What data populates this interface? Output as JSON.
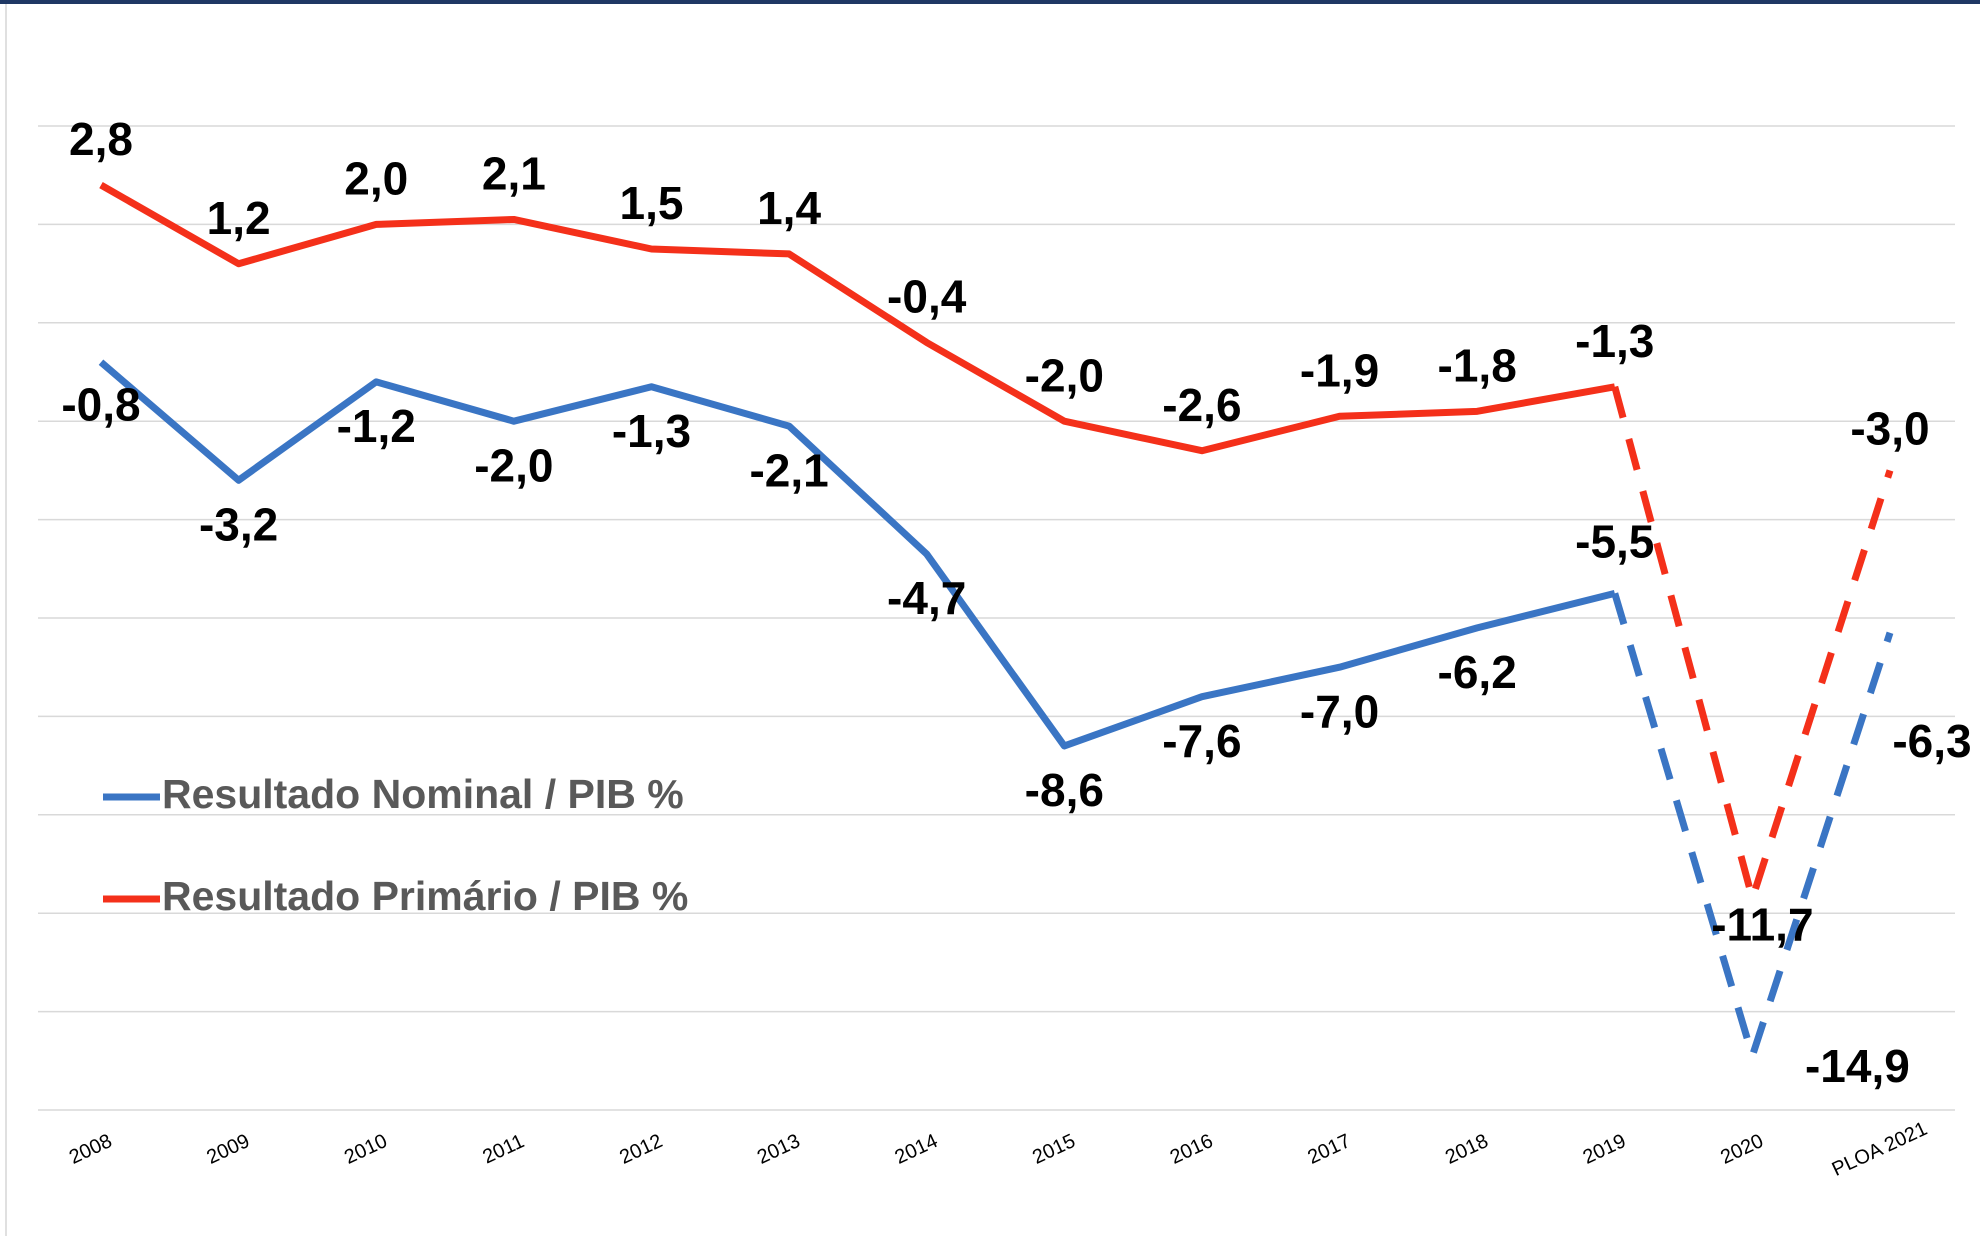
{
  "chart_data": {
    "type": "line",
    "categories": [
      "2008",
      "2009",
      "2010",
      "2011",
      "2012",
      "2013",
      "2014",
      "2015",
      "2016",
      "2017",
      "2018",
      "2019",
      "2020",
      "PLOA 2021"
    ],
    "series": [
      {
        "name": "Resultado Nominal / PIB %",
        "color": "#3a75c4",
        "values": [
          -0.8,
          -3.2,
          -1.2,
          -2.0,
          -1.3,
          -2.1,
          -4.7,
          -8.6,
          -7.6,
          -7.0,
          -6.2,
          -5.5,
          -14.9,
          -6.3
        ],
        "value_labels": [
          "-0,8",
          "-3,2",
          "-1,2",
          "-2,0",
          "-1,3",
          "-2,1",
          "-4,7",
          "-8,6",
          "-7,6",
          "-7,0",
          "-6,2",
          "-5,5",
          "-14,9",
          "-6,3"
        ]
      },
      {
        "name": "Resultado Primário / PIB %",
        "color": "#f4301a",
        "values": [
          2.8,
          1.2,
          2.0,
          2.1,
          1.5,
          1.4,
          -0.4,
          -2.0,
          -2.6,
          -1.9,
          -1.8,
          -1.3,
          -11.7,
          -3.0
        ],
        "value_labels": [
          "2,8",
          "1,2",
          "2,0",
          "2,1",
          "1,5",
          "1,4",
          "-0,4",
          "-2,0",
          "-2,6",
          "-1,9",
          "-1,8",
          "-1,3",
          "-11,7",
          "-3,0"
        ]
      }
    ],
    "ylim": [
      -16,
      4
    ],
    "yticks": [
      -16,
      -14,
      -12,
      -10,
      -8,
      -6,
      -4,
      -2,
      0,
      2,
      4
    ],
    "grid": true,
    "legend": "left",
    "dashed_from_index": 11
  }
}
